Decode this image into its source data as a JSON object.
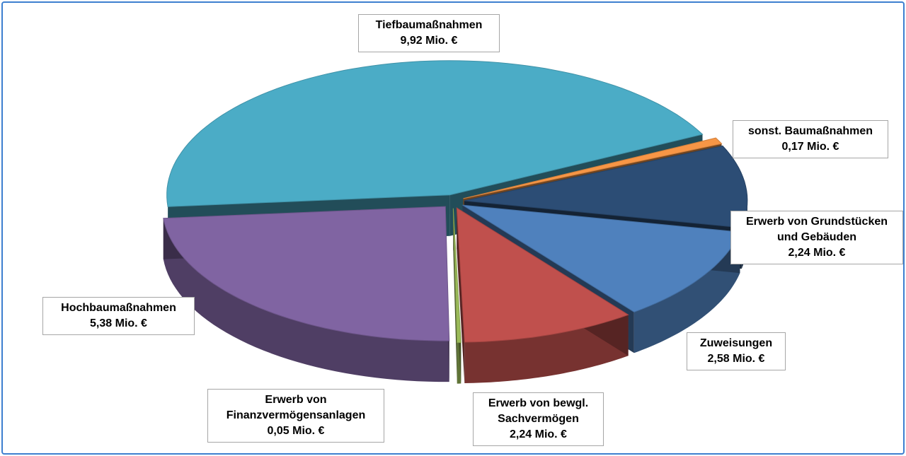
{
  "chart_data": {
    "type": "pie",
    "categories": [
      "Tiefbaumaßnahmen",
      "sonst. Baumaßnahmen",
      "Erwerb von Grundstücken und Gebäuden",
      "Zuweisungen",
      "Erwerb von bewgl. Sachvermögen",
      "Erwerb von Finanzvermögensanlagen",
      "Hochbaumaßnahmen"
    ],
    "values": [
      9.92,
      0.17,
      2.24,
      2.58,
      2.24,
      0.05,
      5.38
    ],
    "value_labels": [
      "9,92 Mio. €",
      "0,17 Mio. €",
      "2,24 Mio. €",
      "2,58 Mio. €",
      "2,24 Mio. €",
      "0,05 Mio. €",
      "5,38 Mio. €"
    ],
    "colors": [
      "#4bacc6",
      "#f79646",
      "#2c4d75",
      "#4f81bd",
      "#c0504d",
      "#9bbb59",
      "#8064a2"
    ]
  }
}
